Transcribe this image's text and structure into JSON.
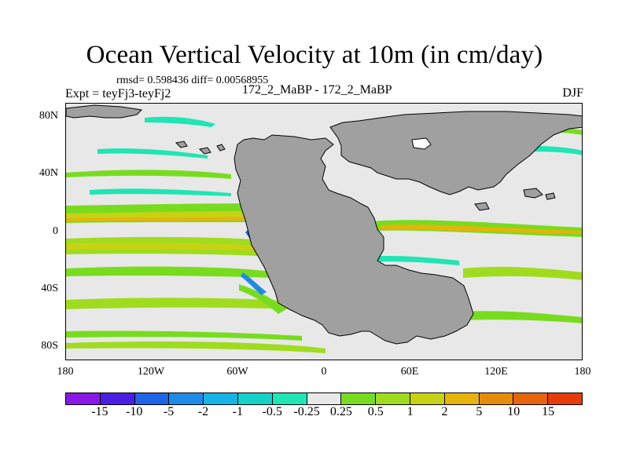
{
  "title": "Ocean Vertical Velocity at 10m (in cm/day)",
  "stats": "rmsd= 0.598436 diff= 0.00568955",
  "experiment": "Expt = teyFj3-teyFj2",
  "center_label": "172_2_MaBP - 172_2_MaBP",
  "season": "DJF",
  "colors": {
    "land": "#a0a0a0",
    "background": "#e8e8e8"
  },
  "chart_data": {
    "type": "heatmap",
    "title": "Ocean Vertical Velocity at 10m (in cm/day)",
    "projection": "cylindrical equidistant",
    "x_ticks": [
      "180",
      "120W",
      "60W",
      "0",
      "60E",
      "120E",
      "180"
    ],
    "x_values": [
      -180,
      -120,
      -60,
      0,
      60,
      120,
      180
    ],
    "y_ticks": [
      "80N",
      "40N",
      "0",
      "40S",
      "80S"
    ],
    "y_values": [
      80,
      40,
      0,
      -40,
      -80
    ],
    "xlim": [
      -180,
      180
    ],
    "ylim": [
      -90,
      90
    ],
    "colorbar": {
      "levels": [
        "-15",
        "-10",
        "-5",
        "-2",
        "-1",
        "-0.5",
        "-0.25",
        "0.25",
        "0.5",
        "1",
        "2",
        "5",
        "10",
        "15"
      ],
      "colors": [
        "#8a18e6",
        "#4b1ee6",
        "#1e64e6",
        "#1e8ce6",
        "#14b4e6",
        "#14d2c8",
        "#1ee6b4",
        "#e8e8e8",
        "#78dc1e",
        "#a0dc1e",
        "#c8d214",
        "#e6b40a",
        "#e68c0a",
        "#e6640a",
        "#e63c0a"
      ]
    }
  }
}
